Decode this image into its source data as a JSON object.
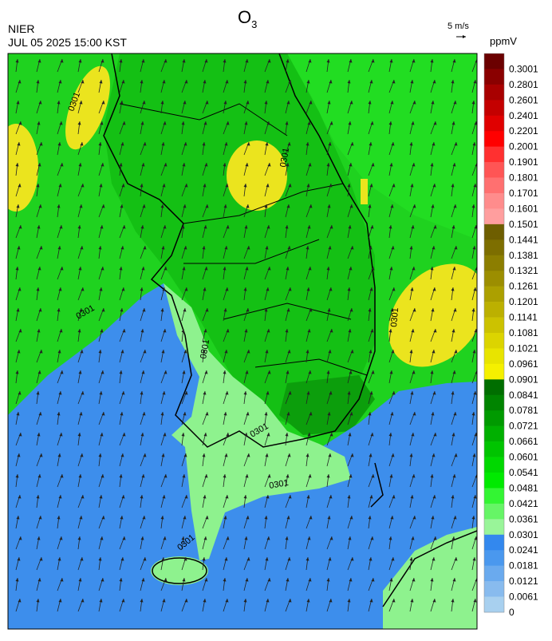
{
  "header": {
    "title": "O",
    "title_sub": "3",
    "agency": "NIER",
    "datetime": "JUL 05 2025 15:00 KST",
    "wind_ref": "5 m/s"
  },
  "colorbar": {
    "unit": "ppmV",
    "labels": [
      0.3001,
      0.2801,
      0.2601,
      0.2401,
      0.2201,
      0.2001,
      0.1901,
      0.1801,
      0.1701,
      0.1601,
      0.1501,
      0.1441,
      0.1381,
      0.1321,
      0.1261,
      0.1201,
      0.1141,
      0.1081,
      0.1021,
      0.0961,
      0.0901,
      0.0841,
      0.0781,
      0.0721,
      0.0661,
      0.0601,
      0.0541,
      0.0481,
      0.0421,
      0.0361,
      0.0301,
      0.0241,
      0.0181,
      0.0121,
      0.0061,
      0
    ],
    "colors": [
      "#6b0000",
      "#8a0000",
      "#a80000",
      "#c40000",
      "#e00000",
      "#ff0000",
      "#ff3030",
      "#ff5555",
      "#ff7070",
      "#ff8c8c",
      "#ff9e9e",
      "#6e5e00",
      "#7d6e00",
      "#8c7e00",
      "#9c8e00",
      "#aca000",
      "#bcb000",
      "#ccc200",
      "#dcd400",
      "#e8e400",
      "#f5f000",
      "#006e00",
      "#008400",
      "#009a00",
      "#00b000",
      "#00c400",
      "#00d800",
      "#00ea00",
      "#33f533",
      "#66f566",
      "#99f599",
      "#3388ee",
      "#4a98ee",
      "#6aaaee",
      "#88bbee",
      "#a8d0ef"
    ]
  },
  "contour_labels": [
    "0301",
    "0301",
    "0301",
    "0301",
    "0301",
    "0301",
    "0301",
    "0301"
  ]
}
